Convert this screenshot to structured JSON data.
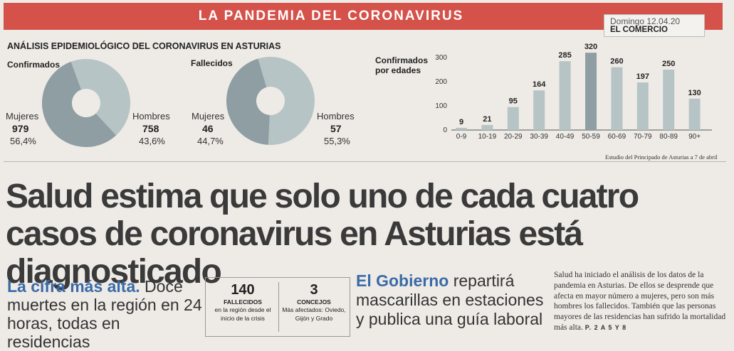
{
  "header": {
    "banner": "LA PANDEMIA DEL CORONAVIRUS",
    "date": "Domingo 12.04.20",
    "newspaper": "EL COMERCIO"
  },
  "section_title": "ANÁLISIS EPIDEMIOLÓGICO DEL CORONAVIRUS EN ASTURIAS",
  "chart_data": [
    {
      "type": "pie",
      "title": "Confirmados",
      "slices": [
        {
          "name": "Mujeres",
          "value": 979,
          "percent": "56,4%",
          "color": "#8e9ea2"
        },
        {
          "name": "Hombres",
          "value": 758,
          "percent": "43,6%",
          "color": "#b6c4c5"
        }
      ]
    },
    {
      "type": "pie",
      "title": "Fallecidos",
      "slices": [
        {
          "name": "Mujeres",
          "value": 46,
          "percent": "44,7%",
          "color": "#8e9ea2"
        },
        {
          "name": "Hombres",
          "value": 57,
          "percent": "55,3%",
          "color": "#b6c4c5"
        }
      ]
    },
    {
      "type": "bar",
      "title": "Confirmados por edades",
      "categories": [
        "0-9",
        "10-19",
        "20-29",
        "30-39",
        "40-49",
        "50-59",
        "60-69",
        "70-79",
        "80-89",
        "90+"
      ],
      "values": [
        9,
        21,
        95,
        164,
        285,
        320,
        260,
        197,
        250,
        130
      ],
      "yticks": [
        0,
        100,
        200,
        300
      ],
      "ylim": [
        0,
        320
      ],
      "highlight_index": 5,
      "bar_color": "#b6c4c5",
      "highlight_color": "#8e9ea2",
      "grid": false
    }
  ],
  "source": "Estudio del Principado de Asturias a 7 de abril",
  "headline": "Salud estima que solo uno de cada cuatro casos de coronavirus en Asturias está diagnosticado",
  "lead1": {
    "kicker": "La cifra más alta.",
    "text": " Doce muertes en la región en 24 horas, todas en residencias"
  },
  "stats": [
    {
      "number": "140",
      "label": "FALLECIDOS",
      "sub": "en la región desde el inicio de la crisis"
    },
    {
      "number": "3",
      "label": "CONCEJOS",
      "sub": "Más afectados: Oviedo, Gijón y Grado"
    }
  ],
  "lead2": {
    "kicker": "El Gobierno",
    "text": " repartirá mascarillas en estaciones y publica una guía laboral"
  },
  "brief": {
    "text": "Salud ha iniciado el análisis de los datos de la pandemia en Asturias. De ellos se desprende que afecta en mayor número a mujeres, pero son más hombres los fallecidos. También que las personas mayores de las residencias han sufrido la mortalidad más alta. ",
    "pageref": "P. 2 A 5 Y 8"
  }
}
